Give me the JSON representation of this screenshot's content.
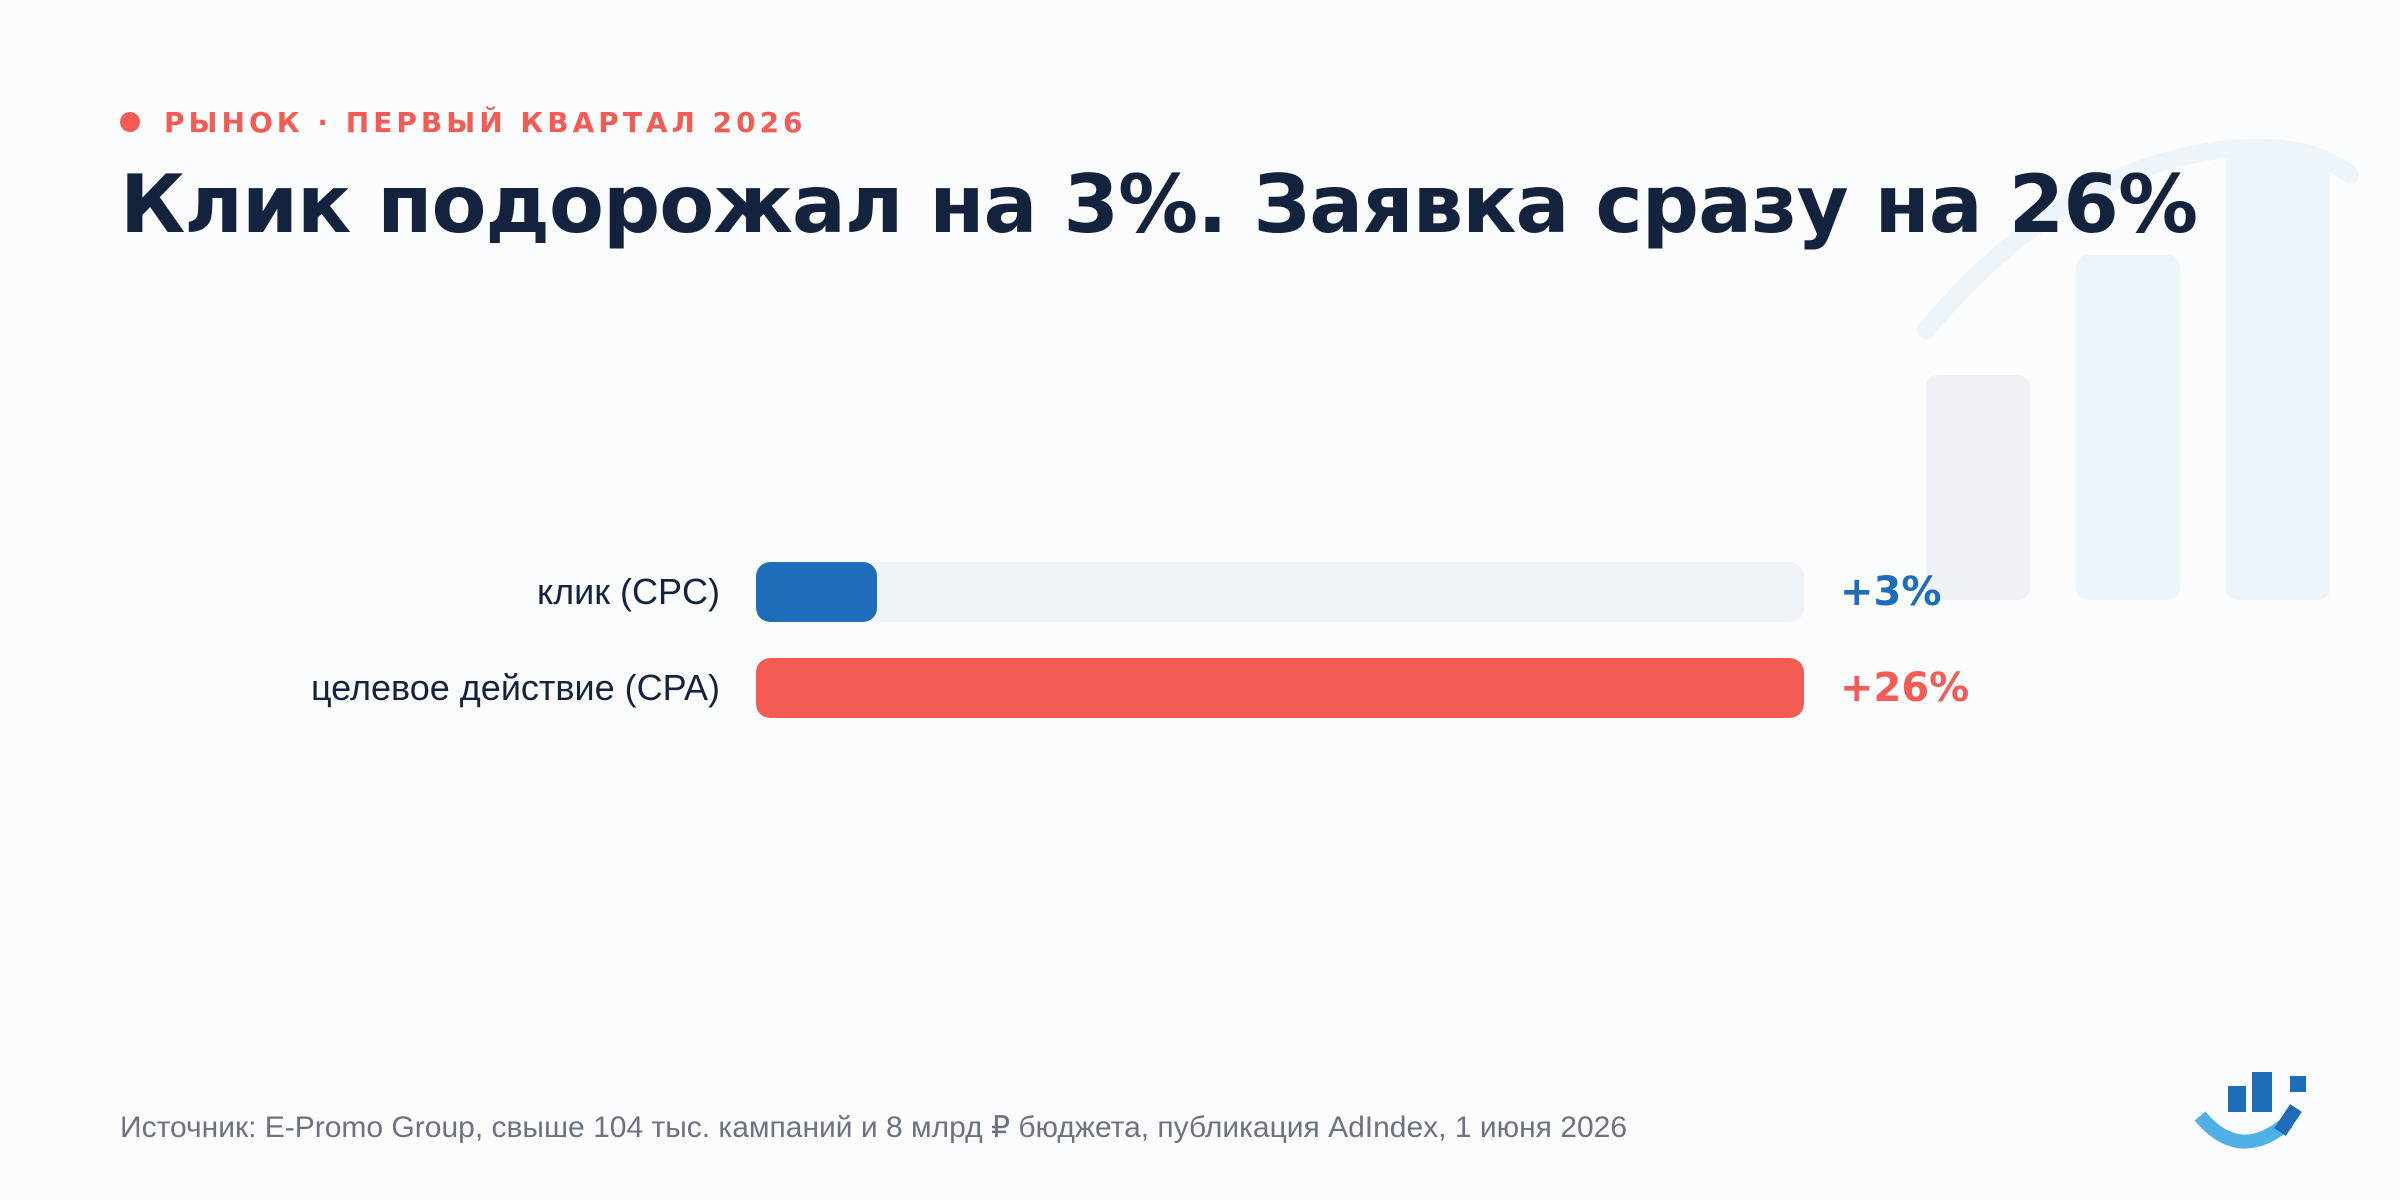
{
  "header": {
    "eyebrow": "РЫНОК · ПЕРВЫЙ КВАРТАЛ 2026",
    "title": "Клик подорожал на 3%. Заявка сразу на 26%"
  },
  "chart_data": {
    "type": "bar",
    "orientation": "horizontal",
    "title": "Клик подорожал на 3%. Заявка сразу на 26%",
    "categories": [
      "клик (CPC)",
      "целевое действие (CPA)"
    ],
    "values": [
      3,
      26
    ],
    "value_labels": [
      "+3%",
      "+26%"
    ],
    "xlim": [
      0,
      26
    ],
    "colors": [
      "#1e6db8",
      "#f45b55"
    ],
    "grid": false
  },
  "footer": {
    "source": "Источник: E-Promo Group, свыше 104 тыс. кампаний и 8 млрд ₽ бюджета, публикация AdIndex, 1 июня 2026"
  },
  "colors": {
    "accent": "#f45b55",
    "primary": "#1e6db8",
    "text": "#14233d",
    "track": "#eef3f7"
  }
}
